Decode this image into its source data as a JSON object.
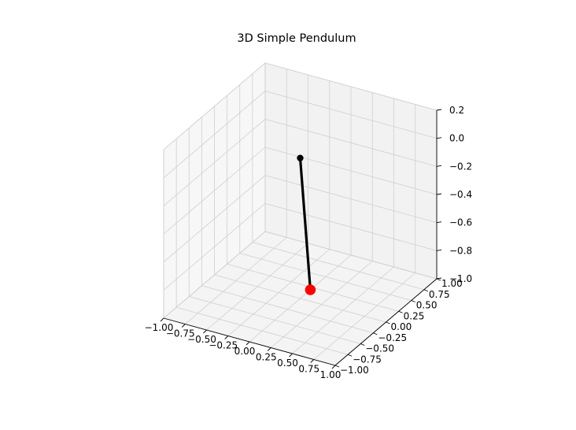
{
  "chart_data": {
    "type": "line3d",
    "title": "3D Simple Pendulum",
    "xlim": [
      -1.0,
      1.0
    ],
    "ylim": [
      -1.0,
      1.0
    ],
    "zlim": [
      -1.0,
      0.2
    ],
    "x_ticks": [
      "−1.00",
      "−0.75",
      "−0.50",
      "−0.25",
      "0.00",
      "0.25",
      "0.50",
      "0.75",
      "1.00"
    ],
    "y_ticks": [
      "−1.00",
      "−0.75",
      "−0.50",
      "−0.25",
      "0.00",
      "0.25",
      "0.50",
      "0.75",
      "1.00"
    ],
    "z_ticks": [
      "−1.0",
      "−0.8",
      "−0.6",
      "−0.4",
      "−0.2",
      "0.0",
      "0.2"
    ],
    "grid": true,
    "series": [
      {
        "role": "rod",
        "color": "#000000",
        "points": [
          {
            "x": 0.0,
            "y": 0.0,
            "z": 0.0
          },
          {
            "x": 0.0,
            "y": 0.2,
            "z": -1.0
          }
        ]
      }
    ],
    "pivot": {
      "x": 0.0,
      "y": 0.0,
      "z": 0.0,
      "color": "#000000"
    },
    "bob": {
      "x": 0.0,
      "y": 0.2,
      "z": -1.0,
      "color": "#ff0000"
    }
  }
}
